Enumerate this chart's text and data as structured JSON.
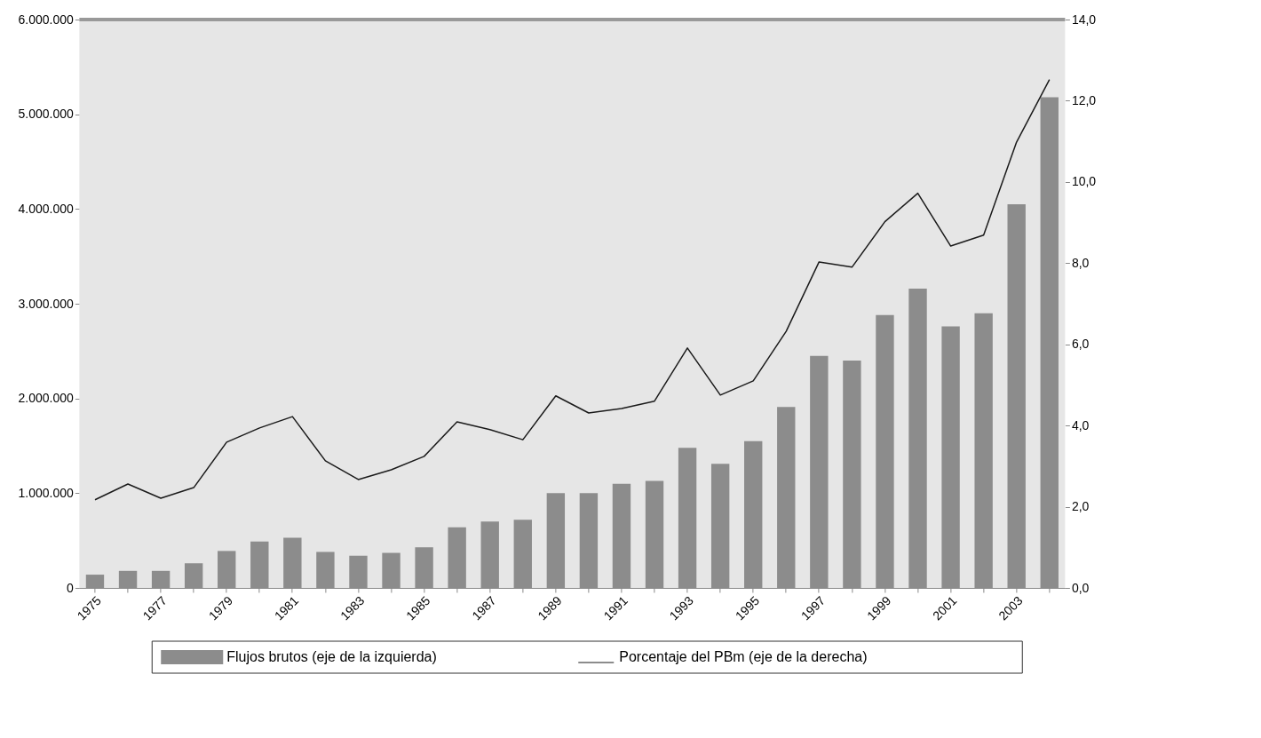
{
  "chart_data": {
    "type": "bar",
    "categories": [
      "1975",
      null,
      "1977",
      null,
      "1979",
      null,
      "1981",
      null,
      "1983",
      null,
      "1985",
      null,
      "1987",
      null,
      "1989",
      null,
      "1991",
      null,
      "1993",
      null,
      "1995",
      null,
      "1997",
      null,
      "1999",
      null,
      "2001",
      null,
      "2003",
      null
    ],
    "series": [
      {
        "name": "Flujos brutos (eje de la izquierda)",
        "color": "#8c8c8c",
        "values": [
          140000,
          180000,
          180000,
          260000,
          390000,
          490000,
          530000,
          380000,
          340000,
          370000,
          430000,
          640000,
          700000,
          720000,
          1000000,
          1000000,
          1100000,
          1130000,
          1480000,
          1310000,
          1550000,
          1910000,
          2450000,
          2400000,
          2880000,
          3160000,
          2760000,
          2900000,
          4050000,
          5180000
        ]
      },
      {
        "name": "Porcentaje del PBm (eje de la derecha)",
        "type": "line",
        "axis": "y2",
        "color": "#1a1a1a",
        "values": [
          2.17,
          2.56,
          2.21,
          2.47,
          3.59,
          3.94,
          4.22,
          3.13,
          2.67,
          2.91,
          3.24,
          4.09,
          3.9,
          3.65,
          4.73,
          4.31,
          4.42,
          4.6,
          5.91,
          4.75,
          5.1,
          6.32,
          8.03,
          7.9,
          9.02,
          9.72,
          8.42,
          8.69,
          10.98,
          12.52
        ]
      }
    ],
    "ylim": [
      0,
      6000000
    ],
    "yticks": [
      0,
      {
        "value": 1000000,
        "label": "1.000.000"
      },
      {
        "value": 2000000,
        "label": "2.000.000"
      },
      {
        "value": 3000000,
        "label": "3.000.000"
      },
      {
        "value": 4000000,
        "label": "4.000.000"
      },
      {
        "value": 5000000,
        "label": "5.000.000"
      },
      {
        "value": 6000000,
        "label": "6.000.000"
      }
    ],
    "y2lim": [
      0,
      14
    ],
    "y2ticks": [
      {
        "value": 0,
        "label": "0,0"
      },
      {
        "value": 2,
        "label": "2,0"
      },
      {
        "value": 4,
        "label": "4,0"
      },
      {
        "value": 6,
        "label": "6,0"
      },
      {
        "value": 8,
        "label": "8,0"
      },
      {
        "value": 10,
        "label": "10,0"
      },
      {
        "value": 12,
        "label": "12,0"
      },
      {
        "value": 14,
        "label": "14,0"
      }
    ],
    "grid": false,
    "legend": "bottom",
    "marker": "none",
    "line_style": "solid"
  }
}
